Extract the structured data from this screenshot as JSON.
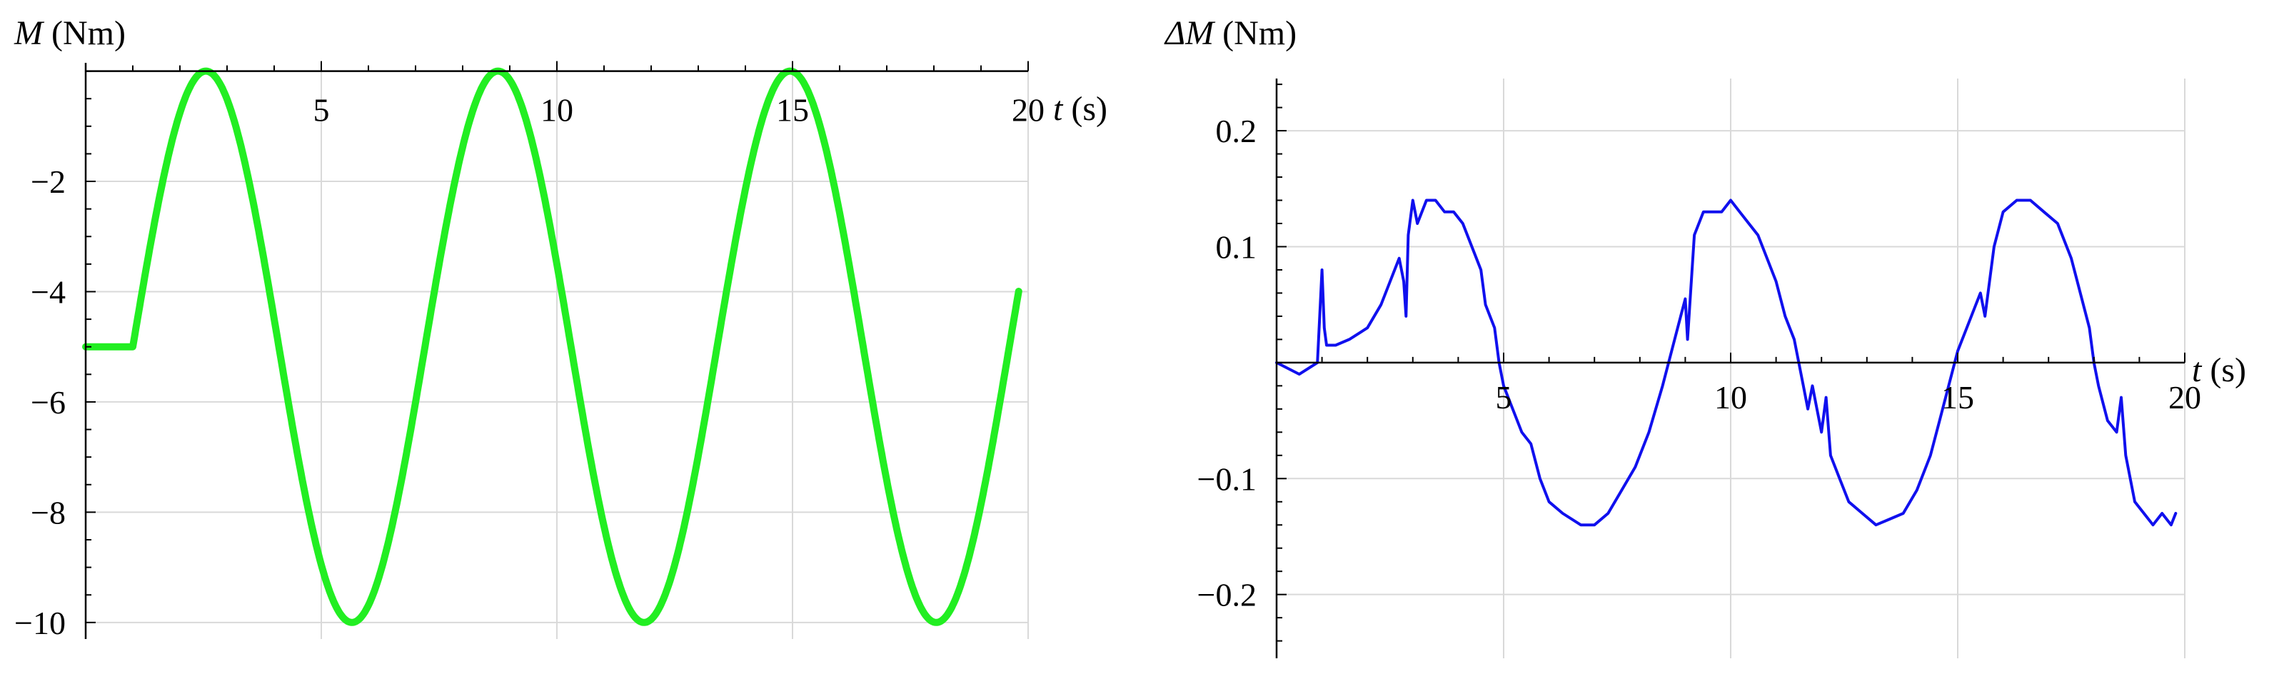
{
  "chart_data": [
    {
      "type": "line",
      "ylabel_var": "M",
      "ylabel_unit": " (Nm)",
      "xlabel_var": "t",
      "xlabel_unit": " (s)",
      "xlim": [
        0,
        20
      ],
      "ylim": [
        -10.3,
        0.15
      ],
      "x_ticks": [
        5,
        10,
        15,
        20
      ],
      "y_ticks": [
        -2,
        -4,
        -6,
        -8,
        -10
      ],
      "x_tick_labels": [
        "5",
        "10",
        "15",
        "20"
      ],
      "y_tick_labels": [
        "−2",
        "−4",
        "−6",
        "−8",
        "−10"
      ],
      "grid": true,
      "series": [
        {
          "color": "#cc0000",
          "stroke_width": 3,
          "model": {
            "pre_t": 1.0,
            "pre_value": -5,
            "offset": -5,
            "amplitude": 5,
            "period": 6.2,
            "phase_start": 1.0,
            "t_end": 19.8
          }
        },
        {
          "color": "#22ee22",
          "stroke_width": 10,
          "model": {
            "pre_t": 1.0,
            "pre_value": -5,
            "offset": -5,
            "amplitude": 5,
            "period": 6.2,
            "phase_start": 1.0,
            "t_end": 19.8
          }
        }
      ]
    },
    {
      "type": "line",
      "ylabel_var": "ΔM",
      "ylabel_unit": " (Nm)",
      "xlabel_var": "t",
      "xlabel_unit": " (s)",
      "xlim": [
        0,
        20
      ],
      "ylim": [
        -0.255,
        0.245
      ],
      "x_ticks": [
        5,
        10,
        15,
        20
      ],
      "y_ticks": [
        0.2,
        0.1,
        -0.1,
        -0.2
      ],
      "x_tick_labels": [
        "5",
        "10",
        "15",
        "20"
      ],
      "y_tick_labels": [
        "0.2",
        "0.1",
        "−0.1",
        "−0.2"
      ],
      "grid": true,
      "series": [
        {
          "color": "#1010ee",
          "stroke_width": 4,
          "x": [
            0,
            0.5,
            0.9,
            1.0,
            1.05,
            1.1,
            1.3,
            1.6,
            2.0,
            2.3,
            2.5,
            2.7,
            2.8,
            2.85,
            2.9,
            3.0,
            3.1,
            3.3,
            3.5,
            3.7,
            3.9,
            4.1,
            4.3,
            4.5,
            4.6,
            4.7,
            4.8,
            4.9,
            5.0,
            5.2,
            5.4,
            5.6,
            5.8,
            6.0,
            6.3,
            6.7,
            7.0,
            7.3,
            7.6,
            7.9,
            8.2,
            8.5,
            8.7,
            8.9,
            9.0,
            9.05,
            9.2,
            9.4,
            9.6,
            9.8,
            10.0,
            10.2,
            10.4,
            10.6,
            10.8,
            11.0,
            11.2,
            11.4,
            11.5,
            11.6,
            11.7,
            11.8,
            11.9,
            12.0,
            12.1,
            12.2,
            12.4,
            12.6,
            12.9,
            13.2,
            13.5,
            13.8,
            14.1,
            14.4,
            14.6,
            14.8,
            15.0,
            15.2,
            15.4,
            15.5,
            15.6,
            15.8,
            16.0,
            16.3,
            16.6,
            16.9,
            17.2,
            17.5,
            17.7,
            17.9,
            18.0,
            18.1,
            18.3,
            18.5,
            18.6,
            18.7,
            18.9,
            19.1,
            19.3,
            19.5,
            19.7,
            19.8
          ],
          "y": [
            0.0,
            -0.01,
            0.0,
            0.08,
            0.03,
            0.015,
            0.015,
            0.02,
            0.03,
            0.05,
            0.07,
            0.09,
            0.07,
            0.04,
            0.11,
            0.14,
            0.12,
            0.14,
            0.14,
            0.13,
            0.13,
            0.12,
            0.1,
            0.08,
            0.05,
            0.04,
            0.03,
            0.0,
            -0.02,
            -0.04,
            -0.06,
            -0.07,
            -0.1,
            -0.12,
            -0.13,
            -0.14,
            -0.14,
            -0.13,
            -0.11,
            -0.09,
            -0.06,
            -0.02,
            0.01,
            0.04,
            0.055,
            0.02,
            0.11,
            0.13,
            0.13,
            0.13,
            0.14,
            0.13,
            0.12,
            0.11,
            0.09,
            0.07,
            0.04,
            0.02,
            0.0,
            -0.02,
            -0.04,
            -0.02,
            -0.04,
            -0.06,
            -0.03,
            -0.08,
            -0.1,
            -0.12,
            -0.13,
            -0.14,
            -0.135,
            -0.13,
            -0.11,
            -0.08,
            -0.05,
            -0.02,
            0.01,
            0.03,
            0.05,
            0.06,
            0.04,
            0.1,
            0.13,
            0.14,
            0.14,
            0.13,
            0.12,
            0.09,
            0.06,
            0.03,
            0.0,
            -0.02,
            -0.05,
            -0.06,
            -0.03,
            -0.08,
            -0.12,
            -0.13,
            -0.14,
            -0.13,
            -0.14,
            -0.13
          ]
        }
      ]
    }
  ]
}
